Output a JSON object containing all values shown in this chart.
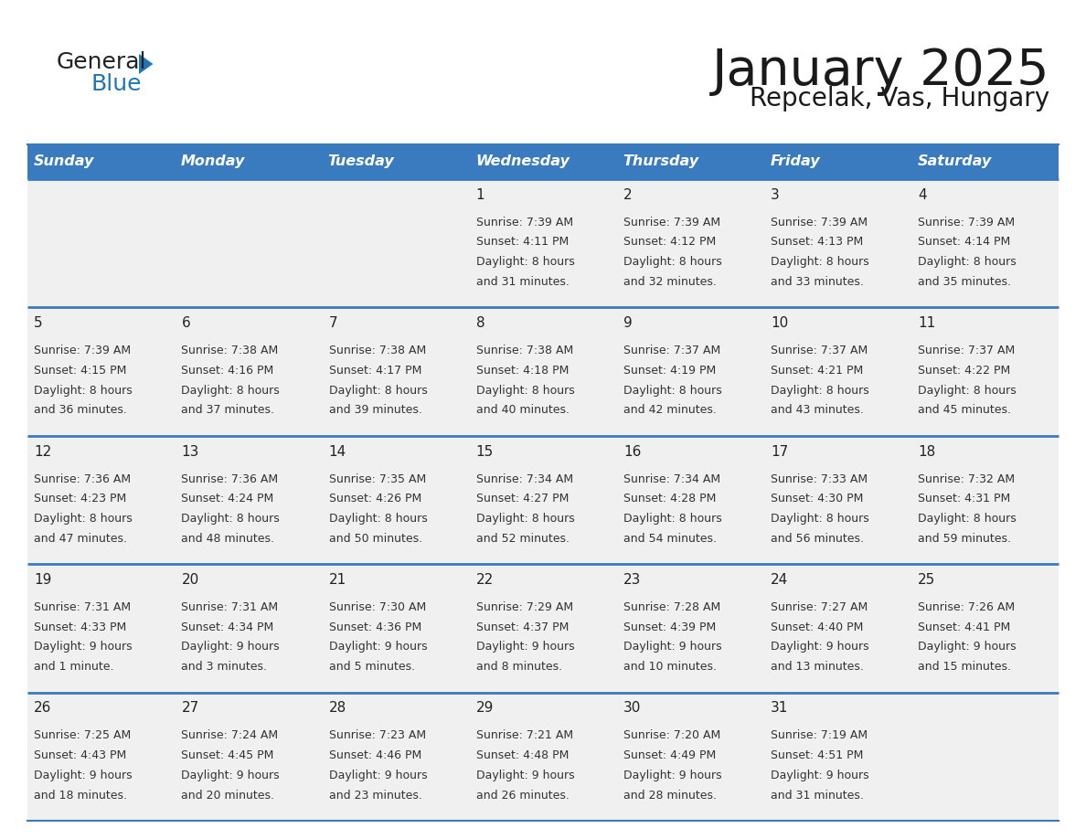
{
  "title": "January 2025",
  "subtitle": "Repcelak, Vas, Hungary",
  "days_of_week": [
    "Sunday",
    "Monday",
    "Tuesday",
    "Wednesday",
    "Thursday",
    "Friday",
    "Saturday"
  ],
  "header_bg": "#3a7abf",
  "header_text": "#ffffff",
  "row_bg": "#f0f0f0",
  "cell_text_color": "#333333",
  "day_num_color": "#222222",
  "line_color": "#3a7abf",
  "logo_general_color": "#222222",
  "logo_blue_color": "#2176b8",
  "logo_triangle_color": "#2176b8",
  "calendar_data": [
    {
      "day": 1,
      "col": 3,
      "row": 0,
      "sunrise": "7:39 AM",
      "sunset": "4:11 PM",
      "daylight_h": "8 hours",
      "daylight_m": "31 minutes."
    },
    {
      "day": 2,
      "col": 4,
      "row": 0,
      "sunrise": "7:39 AM",
      "sunset": "4:12 PM",
      "daylight_h": "8 hours",
      "daylight_m": "32 minutes."
    },
    {
      "day": 3,
      "col": 5,
      "row": 0,
      "sunrise": "7:39 AM",
      "sunset": "4:13 PM",
      "daylight_h": "8 hours",
      "daylight_m": "33 minutes."
    },
    {
      "day": 4,
      "col": 6,
      "row": 0,
      "sunrise": "7:39 AM",
      "sunset": "4:14 PM",
      "daylight_h": "8 hours",
      "daylight_m": "35 minutes."
    },
    {
      "day": 5,
      "col": 0,
      "row": 1,
      "sunrise": "7:39 AM",
      "sunset": "4:15 PM",
      "daylight_h": "8 hours",
      "daylight_m": "36 minutes."
    },
    {
      "day": 6,
      "col": 1,
      "row": 1,
      "sunrise": "7:38 AM",
      "sunset": "4:16 PM",
      "daylight_h": "8 hours",
      "daylight_m": "37 minutes."
    },
    {
      "day": 7,
      "col": 2,
      "row": 1,
      "sunrise": "7:38 AM",
      "sunset": "4:17 PM",
      "daylight_h": "8 hours",
      "daylight_m": "39 minutes."
    },
    {
      "day": 8,
      "col": 3,
      "row": 1,
      "sunrise": "7:38 AM",
      "sunset": "4:18 PM",
      "daylight_h": "8 hours",
      "daylight_m": "40 minutes."
    },
    {
      "day": 9,
      "col": 4,
      "row": 1,
      "sunrise": "7:37 AM",
      "sunset": "4:19 PM",
      "daylight_h": "8 hours",
      "daylight_m": "42 minutes."
    },
    {
      "day": 10,
      "col": 5,
      "row": 1,
      "sunrise": "7:37 AM",
      "sunset": "4:21 PM",
      "daylight_h": "8 hours",
      "daylight_m": "43 minutes."
    },
    {
      "day": 11,
      "col": 6,
      "row": 1,
      "sunrise": "7:37 AM",
      "sunset": "4:22 PM",
      "daylight_h": "8 hours",
      "daylight_m": "45 minutes."
    },
    {
      "day": 12,
      "col": 0,
      "row": 2,
      "sunrise": "7:36 AM",
      "sunset": "4:23 PM",
      "daylight_h": "8 hours",
      "daylight_m": "47 minutes."
    },
    {
      "day": 13,
      "col": 1,
      "row": 2,
      "sunrise": "7:36 AM",
      "sunset": "4:24 PM",
      "daylight_h": "8 hours",
      "daylight_m": "48 minutes."
    },
    {
      "day": 14,
      "col": 2,
      "row": 2,
      "sunrise": "7:35 AM",
      "sunset": "4:26 PM",
      "daylight_h": "8 hours",
      "daylight_m": "50 minutes."
    },
    {
      "day": 15,
      "col": 3,
      "row": 2,
      "sunrise": "7:34 AM",
      "sunset": "4:27 PM",
      "daylight_h": "8 hours",
      "daylight_m": "52 minutes."
    },
    {
      "day": 16,
      "col": 4,
      "row": 2,
      "sunrise": "7:34 AM",
      "sunset": "4:28 PM",
      "daylight_h": "8 hours",
      "daylight_m": "54 minutes."
    },
    {
      "day": 17,
      "col": 5,
      "row": 2,
      "sunrise": "7:33 AM",
      "sunset": "4:30 PM",
      "daylight_h": "8 hours",
      "daylight_m": "56 minutes."
    },
    {
      "day": 18,
      "col": 6,
      "row": 2,
      "sunrise": "7:32 AM",
      "sunset": "4:31 PM",
      "daylight_h": "8 hours",
      "daylight_m": "59 minutes."
    },
    {
      "day": 19,
      "col": 0,
      "row": 3,
      "sunrise": "7:31 AM",
      "sunset": "4:33 PM",
      "daylight_h": "9 hours",
      "daylight_m": "1 minute."
    },
    {
      "day": 20,
      "col": 1,
      "row": 3,
      "sunrise": "7:31 AM",
      "sunset": "4:34 PM",
      "daylight_h": "9 hours",
      "daylight_m": "3 minutes."
    },
    {
      "day": 21,
      "col": 2,
      "row": 3,
      "sunrise": "7:30 AM",
      "sunset": "4:36 PM",
      "daylight_h": "9 hours",
      "daylight_m": "5 minutes."
    },
    {
      "day": 22,
      "col": 3,
      "row": 3,
      "sunrise": "7:29 AM",
      "sunset": "4:37 PM",
      "daylight_h": "9 hours",
      "daylight_m": "8 minutes."
    },
    {
      "day": 23,
      "col": 4,
      "row": 3,
      "sunrise": "7:28 AM",
      "sunset": "4:39 PM",
      "daylight_h": "9 hours",
      "daylight_m": "10 minutes."
    },
    {
      "day": 24,
      "col": 5,
      "row": 3,
      "sunrise": "7:27 AM",
      "sunset": "4:40 PM",
      "daylight_h": "9 hours",
      "daylight_m": "13 minutes."
    },
    {
      "day": 25,
      "col": 6,
      "row": 3,
      "sunrise": "7:26 AM",
      "sunset": "4:41 PM",
      "daylight_h": "9 hours",
      "daylight_m": "15 minutes."
    },
    {
      "day": 26,
      "col": 0,
      "row": 4,
      "sunrise": "7:25 AM",
      "sunset": "4:43 PM",
      "daylight_h": "9 hours",
      "daylight_m": "18 minutes."
    },
    {
      "day": 27,
      "col": 1,
      "row": 4,
      "sunrise": "7:24 AM",
      "sunset": "4:45 PM",
      "daylight_h": "9 hours",
      "daylight_m": "20 minutes."
    },
    {
      "day": 28,
      "col": 2,
      "row": 4,
      "sunrise": "7:23 AM",
      "sunset": "4:46 PM",
      "daylight_h": "9 hours",
      "daylight_m": "23 minutes."
    },
    {
      "day": 29,
      "col": 3,
      "row": 4,
      "sunrise": "7:21 AM",
      "sunset": "4:48 PM",
      "daylight_h": "9 hours",
      "daylight_m": "26 minutes."
    },
    {
      "day": 30,
      "col": 4,
      "row": 4,
      "sunrise": "7:20 AM",
      "sunset": "4:49 PM",
      "daylight_h": "9 hours",
      "daylight_m": "28 minutes."
    },
    {
      "day": 31,
      "col": 5,
      "row": 4,
      "sunrise": "7:19 AM",
      "sunset": "4:51 PM",
      "daylight_h": "9 hours",
      "daylight_m": "31 minutes."
    }
  ],
  "num_rows": 5,
  "num_cols": 7
}
